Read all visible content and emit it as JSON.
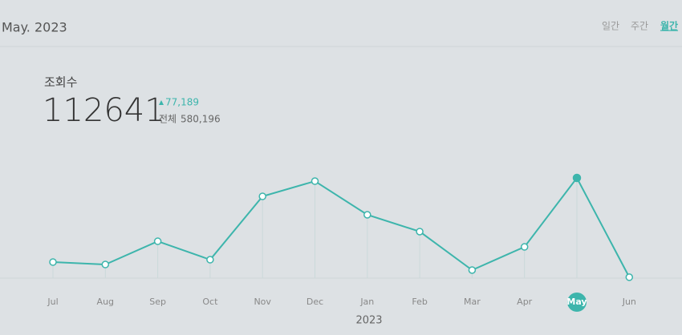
{
  "header": {
    "period": "May. 2023",
    "tabs": [
      "일간",
      "주간",
      "월간"
    ],
    "active_tab": 2
  },
  "stats": {
    "label": "조회수",
    "value": 112641,
    "change": "77,189",
    "total_label": "전체",
    "total": "580,196"
  },
  "chart_data": {
    "type": "line",
    "categories": [
      "Jul",
      "Aug",
      "Sep",
      "Oct",
      "Nov",
      "Dec",
      "Jan",
      "Feb",
      "Mar",
      "Apr",
      "May",
      "Jun"
    ],
    "values": [
      18000,
      15300,
      41400,
      20700,
      91900,
      109000,
      71200,
      52300,
      9000,
      35100,
      112641,
      1000
    ],
    "color": "#3db5ac",
    "selected_index": 10,
    "x_label": "2023"
  }
}
